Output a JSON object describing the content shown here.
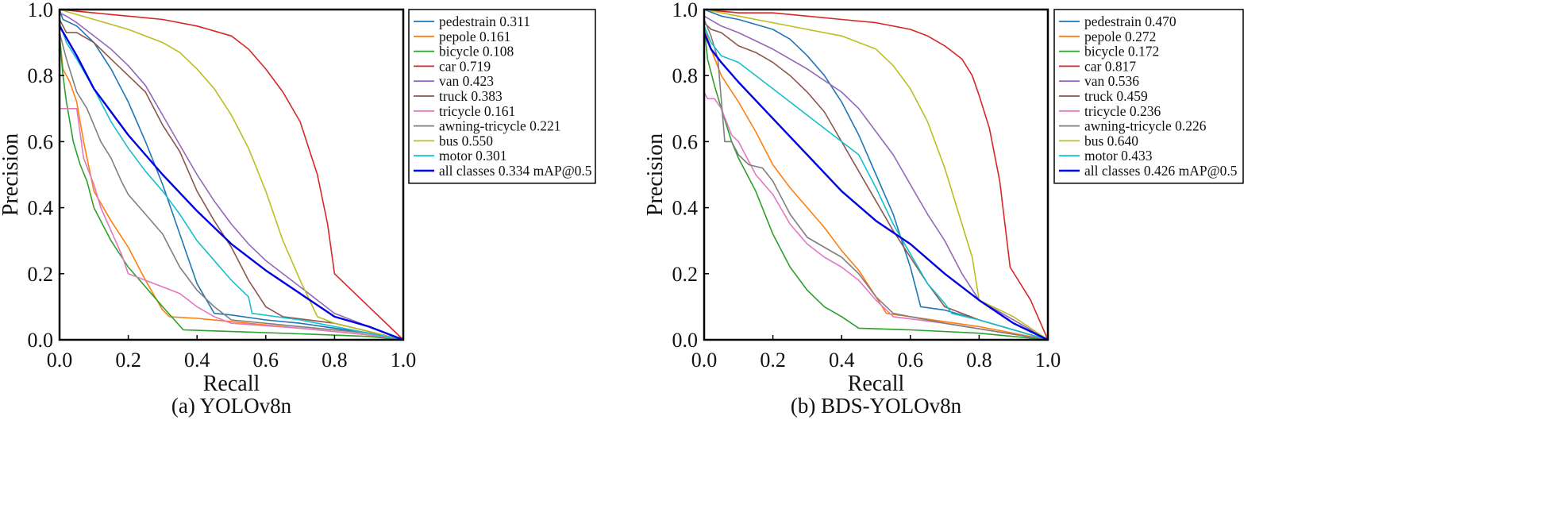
{
  "chart_data": [
    {
      "type": "line",
      "caption": "(a) YOLOv8n",
      "xlabel": "Recall",
      "ylabel": "Precision",
      "xlim": [
        0,
        1
      ],
      "ylim": [
        0,
        1
      ],
      "xticks": [
        "0.0",
        "0.2",
        "0.4",
        "0.6",
        "0.8",
        "1.0"
      ],
      "yticks": [
        "0.0",
        "0.2",
        "0.4",
        "0.6",
        "0.8",
        "1.0"
      ],
      "grid": false,
      "legend_position": "right",
      "series": [
        {
          "name": "pedestrain",
          "label_value": "0.311",
          "color": "#1f77b4",
          "x": [
            0.0,
            0.01,
            0.05,
            0.1,
            0.15,
            0.2,
            0.25,
            0.3,
            0.35,
            0.4,
            0.45,
            0.5,
            0.6,
            0.7,
            0.8,
            0.9,
            1.0
          ],
          "y": [
            1.0,
            0.97,
            0.95,
            0.9,
            0.82,
            0.72,
            0.6,
            0.47,
            0.32,
            0.17,
            0.08,
            0.075,
            0.06,
            0.05,
            0.035,
            0.02,
            0.0
          ]
        },
        {
          "name": "pepole",
          "label_value": "0.161",
          "color": "#ff7f0e",
          "x": [
            0.0,
            0.01,
            0.03,
            0.05,
            0.07,
            0.1,
            0.15,
            0.2,
            0.25,
            0.3,
            0.32,
            0.4,
            0.5,
            0.6,
            0.7,
            0.8,
            0.9,
            1.0
          ],
          "y": [
            0.92,
            0.82,
            0.78,
            0.72,
            0.6,
            0.45,
            0.36,
            0.28,
            0.18,
            0.09,
            0.07,
            0.065,
            0.055,
            0.045,
            0.035,
            0.025,
            0.015,
            0.0
          ]
        },
        {
          "name": "bicycle",
          "label_value": "0.108",
          "color": "#2ca02c",
          "x": [
            0.0,
            0.01,
            0.02,
            0.04,
            0.06,
            0.08,
            0.1,
            0.15,
            0.2,
            0.25,
            0.3,
            0.36,
            0.5,
            0.7,
            0.9,
            1.0
          ],
          "y": [
            0.92,
            0.8,
            0.72,
            0.6,
            0.53,
            0.48,
            0.4,
            0.3,
            0.22,
            0.16,
            0.1,
            0.03,
            0.025,
            0.018,
            0.01,
            0.0
          ]
        },
        {
          "name": "car",
          "label_value": "0.719",
          "color": "#d62728",
          "x": [
            0.0,
            0.1,
            0.2,
            0.3,
            0.4,
            0.5,
            0.55,
            0.6,
            0.65,
            0.7,
            0.75,
            0.78,
            0.8,
            0.9,
            1.0
          ],
          "y": [
            1.0,
            0.99,
            0.98,
            0.97,
            0.95,
            0.92,
            0.88,
            0.82,
            0.75,
            0.66,
            0.5,
            0.35,
            0.2,
            0.1,
            0.0
          ]
        },
        {
          "name": "van",
          "label_value": "0.423",
          "color": "#9467bd",
          "x": [
            0.0,
            0.02,
            0.05,
            0.1,
            0.15,
            0.2,
            0.25,
            0.3,
            0.35,
            0.4,
            0.45,
            0.5,
            0.55,
            0.6,
            0.65,
            0.7,
            0.8,
            1.0
          ],
          "y": [
            0.99,
            0.98,
            0.96,
            0.92,
            0.88,
            0.83,
            0.77,
            0.68,
            0.59,
            0.5,
            0.42,
            0.35,
            0.29,
            0.24,
            0.2,
            0.16,
            0.08,
            0.0
          ]
        },
        {
          "name": "truck",
          "label_value": "0.383",
          "color": "#8c564b",
          "x": [
            0.0,
            0.02,
            0.05,
            0.1,
            0.15,
            0.2,
            0.25,
            0.3,
            0.35,
            0.4,
            0.45,
            0.5,
            0.55,
            0.6,
            0.65,
            0.8,
            1.0
          ],
          "y": [
            0.97,
            0.93,
            0.93,
            0.9,
            0.85,
            0.8,
            0.75,
            0.65,
            0.57,
            0.45,
            0.36,
            0.28,
            0.18,
            0.1,
            0.07,
            0.05,
            0.0
          ]
        },
        {
          "name": "tricycle",
          "label_value": "0.161",
          "color": "#e377c2",
          "x": [
            0.0,
            0.05,
            0.07,
            0.1,
            0.12,
            0.15,
            0.18,
            0.2,
            0.25,
            0.3,
            0.35,
            0.4,
            0.45,
            0.5,
            0.7,
            0.9,
            1.0
          ],
          "y": [
            0.7,
            0.7,
            0.55,
            0.47,
            0.4,
            0.33,
            0.26,
            0.2,
            0.18,
            0.16,
            0.14,
            0.1,
            0.07,
            0.05,
            0.035,
            0.015,
            0.0
          ]
        },
        {
          "name": "awning-tricycle",
          "label_value": "0.221",
          "color": "#7f7f7f",
          "x": [
            0.0,
            0.02,
            0.05,
            0.08,
            0.1,
            0.12,
            0.15,
            0.18,
            0.2,
            0.25,
            0.3,
            0.35,
            0.4,
            0.45,
            0.5,
            0.7,
            0.9,
            1.0
          ],
          "y": [
            0.93,
            0.85,
            0.75,
            0.7,
            0.65,
            0.6,
            0.55,
            0.48,
            0.44,
            0.38,
            0.32,
            0.22,
            0.15,
            0.1,
            0.06,
            0.04,
            0.02,
            0.0
          ]
        },
        {
          "name": "bus",
          "label_value": "0.550",
          "color": "#bcbd22",
          "x": [
            0.0,
            0.1,
            0.2,
            0.3,
            0.35,
            0.4,
            0.45,
            0.5,
            0.55,
            0.6,
            0.65,
            0.7,
            0.75,
            0.8,
            0.9,
            1.0
          ],
          "y": [
            1.0,
            0.97,
            0.94,
            0.9,
            0.87,
            0.82,
            0.76,
            0.68,
            0.58,
            0.45,
            0.3,
            0.18,
            0.07,
            0.05,
            0.025,
            0.0
          ]
        },
        {
          "name": "motor",
          "label_value": "0.301",
          "color": "#17becf",
          "x": [
            0.0,
            0.02,
            0.05,
            0.1,
            0.15,
            0.2,
            0.25,
            0.3,
            0.35,
            0.4,
            0.45,
            0.5,
            0.55,
            0.56,
            0.7,
            0.9,
            1.0
          ],
          "y": [
            0.96,
            0.9,
            0.85,
            0.76,
            0.66,
            0.58,
            0.51,
            0.45,
            0.38,
            0.3,
            0.24,
            0.18,
            0.13,
            0.08,
            0.06,
            0.02,
            0.0
          ]
        },
        {
          "name": "all classes",
          "label_value": "0.334 mAP@0.5",
          "color": "#0000e0",
          "bold": true,
          "x": [
            0.0,
            0.05,
            0.1,
            0.2,
            0.3,
            0.4,
            0.5,
            0.6,
            0.7,
            0.8,
            0.9,
            1.0
          ],
          "y": [
            0.95,
            0.86,
            0.76,
            0.62,
            0.5,
            0.39,
            0.29,
            0.21,
            0.14,
            0.07,
            0.04,
            0.0
          ]
        }
      ]
    },
    {
      "type": "line",
      "caption": "(b) BDS-YOLOv8n",
      "xlabel": "Recall",
      "ylabel": "Precision",
      "xlim": [
        0,
        1
      ],
      "ylim": [
        0,
        1
      ],
      "xticks": [
        "0.0",
        "0.2",
        "0.4",
        "0.6",
        "0.8",
        "1.0"
      ],
      "yticks": [
        "0.0",
        "0.2",
        "0.4",
        "0.6",
        "0.8",
        "1.0"
      ],
      "grid": false,
      "legend_position": "right",
      "series": [
        {
          "name": "pedestrain",
          "label_value": "0.470",
          "color": "#1f77b4",
          "x": [
            0.0,
            0.05,
            0.1,
            0.2,
            0.25,
            0.3,
            0.35,
            0.4,
            0.45,
            0.5,
            0.55,
            0.6,
            0.63,
            0.7,
            0.8,
            0.9,
            1.0
          ],
          "y": [
            1.0,
            0.98,
            0.97,
            0.94,
            0.91,
            0.86,
            0.8,
            0.72,
            0.62,
            0.5,
            0.38,
            0.22,
            0.1,
            0.09,
            0.06,
            0.03,
            0.0
          ]
        },
        {
          "name": "pepole",
          "label_value": "0.272",
          "color": "#ff7f0e",
          "x": [
            0.0,
            0.02,
            0.05,
            0.1,
            0.15,
            0.2,
            0.25,
            0.3,
            0.35,
            0.4,
            0.45,
            0.5,
            0.53,
            0.6,
            0.8,
            1.0
          ],
          "y": [
            0.95,
            0.88,
            0.8,
            0.72,
            0.63,
            0.53,
            0.46,
            0.4,
            0.34,
            0.27,
            0.21,
            0.13,
            0.08,
            0.07,
            0.04,
            0.0
          ]
        },
        {
          "name": "bicycle",
          "label_value": "0.172",
          "color": "#2ca02c",
          "x": [
            0.0,
            0.01,
            0.03,
            0.05,
            0.08,
            0.1,
            0.15,
            0.2,
            0.25,
            0.3,
            0.35,
            0.4,
            0.45,
            0.6,
            0.8,
            1.0
          ],
          "y": [
            0.95,
            0.85,
            0.77,
            0.7,
            0.6,
            0.55,
            0.45,
            0.32,
            0.22,
            0.15,
            0.1,
            0.07,
            0.035,
            0.03,
            0.02,
            0.0
          ]
        },
        {
          "name": "car",
          "label_value": "0.817",
          "color": "#d62728",
          "x": [
            0.0,
            0.1,
            0.2,
            0.3,
            0.4,
            0.5,
            0.6,
            0.65,
            0.7,
            0.75,
            0.78,
            0.8,
            0.83,
            0.86,
            0.89,
            0.95,
            1.0
          ],
          "y": [
            1.0,
            0.99,
            0.99,
            0.98,
            0.97,
            0.96,
            0.94,
            0.92,
            0.89,
            0.85,
            0.8,
            0.74,
            0.64,
            0.48,
            0.22,
            0.12,
            0.0
          ]
        },
        {
          "name": "van",
          "label_value": "0.536",
          "color": "#9467bd",
          "x": [
            0.0,
            0.05,
            0.1,
            0.2,
            0.3,
            0.4,
            0.45,
            0.5,
            0.55,
            0.6,
            0.65,
            0.7,
            0.75,
            0.8,
            0.9,
            1.0
          ],
          "y": [
            0.98,
            0.95,
            0.93,
            0.88,
            0.82,
            0.75,
            0.7,
            0.63,
            0.56,
            0.47,
            0.38,
            0.3,
            0.2,
            0.12,
            0.06,
            0.0
          ]
        },
        {
          "name": "truck",
          "label_value": "0.459",
          "color": "#8c564b",
          "x": [
            0.0,
            0.02,
            0.05,
            0.1,
            0.15,
            0.2,
            0.25,
            0.3,
            0.35,
            0.4,
            0.45,
            0.5,
            0.55,
            0.6,
            0.65,
            0.7,
            0.8,
            1.0
          ],
          "y": [
            0.96,
            0.94,
            0.93,
            0.89,
            0.87,
            0.84,
            0.8,
            0.75,
            0.69,
            0.6,
            0.51,
            0.42,
            0.33,
            0.25,
            0.17,
            0.1,
            0.06,
            0.0
          ]
        },
        {
          "name": "tricycle",
          "label_value": "0.236",
          "color": "#e377c2",
          "x": [
            0.0,
            0.01,
            0.03,
            0.05,
            0.08,
            0.1,
            0.15,
            0.2,
            0.25,
            0.3,
            0.35,
            0.4,
            0.45,
            0.5,
            0.55,
            0.7,
            1.0
          ],
          "y": [
            0.75,
            0.73,
            0.73,
            0.7,
            0.62,
            0.6,
            0.5,
            0.44,
            0.35,
            0.29,
            0.25,
            0.22,
            0.18,
            0.12,
            0.07,
            0.05,
            0.0
          ]
        },
        {
          "name": "awning-tricycle",
          "label_value": "0.226",
          "color": "#7f7f7f",
          "x": [
            0.0,
            0.02,
            0.04,
            0.06,
            0.08,
            0.1,
            0.13,
            0.17,
            0.2,
            0.25,
            0.3,
            0.35,
            0.4,
            0.45,
            0.5,
            0.55,
            0.7,
            1.0
          ],
          "y": [
            0.97,
            0.92,
            0.85,
            0.6,
            0.6,
            0.56,
            0.53,
            0.52,
            0.48,
            0.38,
            0.31,
            0.28,
            0.25,
            0.2,
            0.13,
            0.08,
            0.05,
            0.0
          ]
        },
        {
          "name": "bus",
          "label_value": "0.640",
          "color": "#bcbd22",
          "x": [
            0.0,
            0.1,
            0.2,
            0.3,
            0.4,
            0.5,
            0.55,
            0.6,
            0.65,
            0.7,
            0.75,
            0.78,
            0.8,
            0.9,
            1.0
          ],
          "y": [
            1.0,
            0.98,
            0.96,
            0.94,
            0.92,
            0.88,
            0.83,
            0.76,
            0.66,
            0.52,
            0.35,
            0.25,
            0.12,
            0.07,
            0.0
          ]
        },
        {
          "name": "motor",
          "label_value": "0.433",
          "color": "#17becf",
          "x": [
            0.0,
            0.02,
            0.05,
            0.1,
            0.2,
            0.3,
            0.4,
            0.45,
            0.5,
            0.55,
            0.6,
            0.65,
            0.7,
            0.72,
            0.8,
            0.9,
            1.0
          ],
          "y": [
            0.95,
            0.9,
            0.86,
            0.84,
            0.76,
            0.68,
            0.6,
            0.56,
            0.46,
            0.35,
            0.26,
            0.17,
            0.11,
            0.08,
            0.06,
            0.03,
            0.0
          ]
        },
        {
          "name": "all classes",
          "label_value": "0.426 mAP@0.5",
          "color": "#0000e0",
          "bold": true,
          "x": [
            0.0,
            0.02,
            0.05,
            0.1,
            0.2,
            0.3,
            0.4,
            0.5,
            0.6,
            0.7,
            0.8,
            0.9,
            1.0
          ],
          "y": [
            0.93,
            0.88,
            0.84,
            0.78,
            0.67,
            0.56,
            0.45,
            0.36,
            0.29,
            0.2,
            0.12,
            0.05,
            0.0
          ]
        }
      ]
    }
  ]
}
